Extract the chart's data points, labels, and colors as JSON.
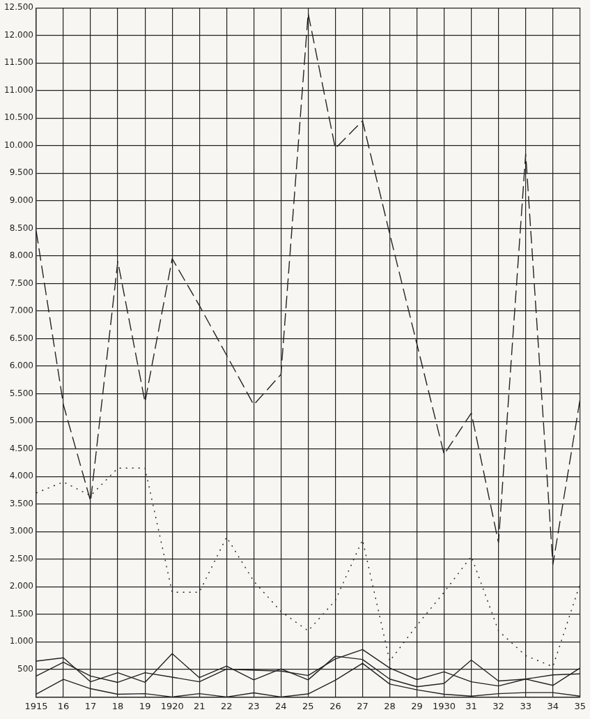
{
  "chart_data": {
    "type": "line",
    "categories": [
      "1915",
      "16",
      "17",
      "18",
      "19",
      "1920",
      "21",
      "22",
      "23",
      "24",
      "25",
      "26",
      "27",
      "28",
      "29",
      "1930",
      "31",
      "32",
      "33",
      "34",
      "35"
    ],
    "series": [
      {
        "color": "#222222",
        "line_style": "dashed",
        "values": [
          8450,
          5300,
          3550,
          7900,
          5350,
          7950,
          7100,
          6200,
          5300,
          5850,
          12400,
          9950,
          10450,
          8400,
          6400,
          4400,
          5150,
          2800,
          9850,
          2400,
          5400
        ]
      },
      {
        "color": "#222222",
        "line_style": "dotted",
        "values": [
          3700,
          3900,
          3650,
          4150,
          4150,
          1900,
          1900,
          2900,
          2100,
          1550,
          1200,
          1750,
          2850,
          650,
          1300,
          1900,
          2550,
          1200,
          750,
          550,
          2050
        ]
      },
      {
        "color": "#222222",
        "line_style": "solid",
        "values": [
          650,
          710,
          275,
          440,
          265,
          785,
          350,
          560,
          310,
          510,
          310,
          740,
          680,
          325,
          185,
          245,
          670,
          290,
          325,
          210,
          525
        ]
      },
      {
        "color": "#222222",
        "line_style": "solid",
        "values": [
          380,
          630,
          380,
          265,
          440,
          360,
          275,
          505,
          485,
          470,
          390,
          690,
          860,
          525,
          315,
          455,
          275,
          200,
          325,
          400,
          420
        ]
      },
      {
        "color": "#222222",
        "line_style": "solid",
        "values": [
          50,
          320,
          150,
          50,
          60,
          0,
          60,
          0,
          75,
          0,
          55,
          305,
          610,
          235,
          130,
          50,
          15,
          60,
          80,
          80,
          15
        ]
      }
    ],
    "ylim": [
      0,
      12500
    ],
    "yticks": [
      500,
      {
        "value": 1000,
        "label": "1.000"
      },
      {
        "value": 1500,
        "label": "1.500"
      },
      {
        "value": 2000,
        "label": "2.000"
      },
      {
        "value": 2500,
        "label": "2.500"
      },
      {
        "value": 3000,
        "label": "3.000"
      },
      {
        "value": 3500,
        "label": "3.500"
      },
      {
        "value": 4000,
        "label": "4.000"
      },
      {
        "value": 4500,
        "label": "4.500"
      },
      {
        "value": 5000,
        "label": "5.000"
      },
      {
        "value": 5500,
        "label": "5.500"
      },
      {
        "value": 6000,
        "label": "6.000"
      },
      {
        "value": 6500,
        "label": "6.500"
      },
      {
        "value": 7000,
        "label": "7.000"
      },
      {
        "value": 7500,
        "label": "7.500"
      },
      {
        "value": 8000,
        "label": "8.000"
      },
      {
        "value": 8500,
        "label": "8.500"
      },
      {
        "value": 9000,
        "label": "9.000"
      },
      {
        "value": 9500,
        "label": "9.500"
      },
      {
        "value": 10000,
        "label": "10.000"
      },
      {
        "value": 10500,
        "label": "10.500"
      },
      {
        "value": 11000,
        "label": "11.000"
      },
      {
        "value": 11500,
        "label": "11.500"
      },
      {
        "value": 12000,
        "label": "12.000"
      },
      {
        "value": 12500,
        "label": "12.500"
      }
    ],
    "grid": true,
    "legend": false
  }
}
